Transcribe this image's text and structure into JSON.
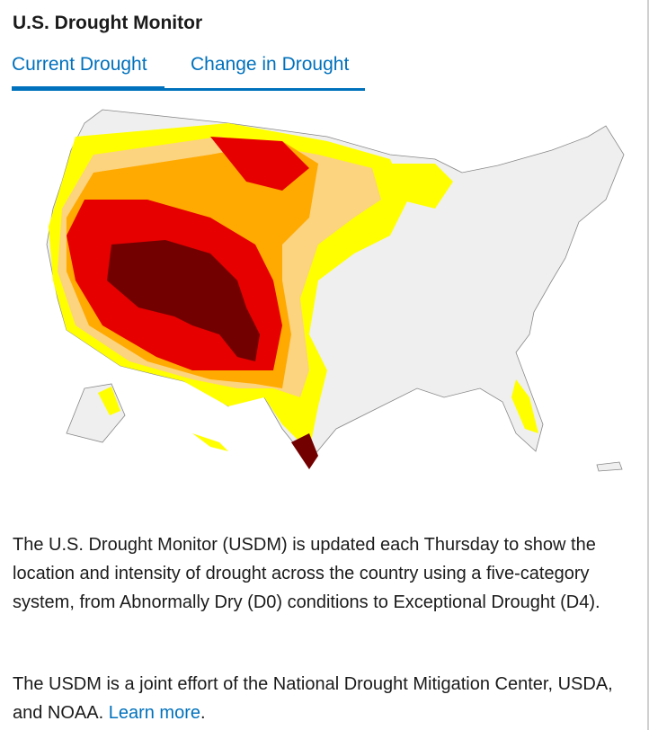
{
  "header": {
    "title": "U.S. Drought Monitor"
  },
  "tabs": [
    {
      "label": "Current Drought",
      "active": true
    },
    {
      "label": "Change in Drought",
      "active": false
    }
  ],
  "map": {
    "legend_colors": {
      "none": "#efefef",
      "D0": "#ffff00",
      "D1": "#fcd37f",
      "D2": "#ffaa00",
      "D3": "#e60000",
      "D4": "#730000"
    }
  },
  "description": {
    "p1": "The U.S. Drought Monitor (USDM) is updated each Thursday to show the location and intensity of drought across the country using a five-category system, from Abnormally Dry (D0) conditions to Exceptional Drought (D4).",
    "p2_text": "The USDM is a joint effort of the National Drought Mitigation Center, USDA, and NOAA. ",
    "p2_link": "Learn more",
    "p2_end": "."
  }
}
